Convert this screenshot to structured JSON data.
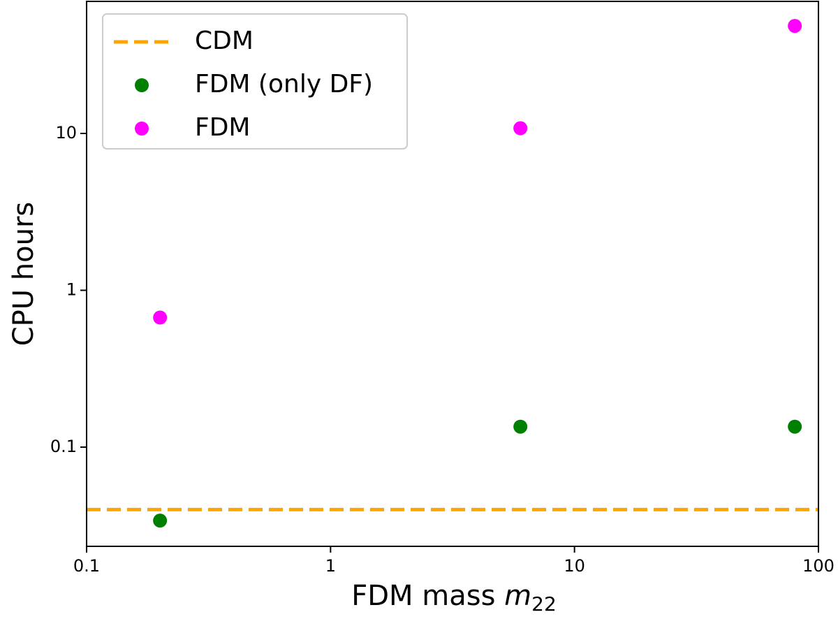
{
  "chart_data": {
    "type": "scatter",
    "xlabel": {
      "text": "FDM mass",
      "var": "m",
      "sub": "22"
    },
    "ylabel": "CPU hours",
    "xscale": "log",
    "yscale": "log",
    "xlim": [
      0.1,
      100
    ],
    "xticks": [
      0.1,
      1,
      10,
      100
    ],
    "ylim": [
      0.0233,
      69.5
    ],
    "yticks": [
      0.1,
      1,
      10
    ],
    "legend": "upper left",
    "series": [
      {
        "name": "CDM",
        "kind": "hline",
        "color": "#ffa500",
        "values": [
          0.04
        ]
      },
      {
        "name": "FDM (only DF)",
        "kind": "points",
        "color": "#008000",
        "x": [
          0.2,
          6,
          80
        ],
        "values": [
          0.034,
          0.135,
          0.135
        ]
      },
      {
        "name": "FDM",
        "kind": "points",
        "color": "#ff00ff",
        "x": [
          0.2,
          6,
          80
        ],
        "values": [
          0.67,
          10.8,
          48.5
        ]
      }
    ]
  }
}
